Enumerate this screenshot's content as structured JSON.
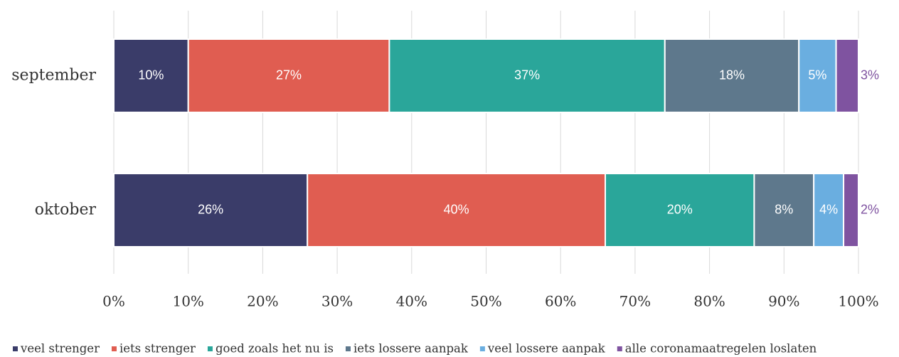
{
  "chart_data": {
    "type": "stacked_bar_horizontal",
    "categories": [
      "september",
      "oktober"
    ],
    "series": [
      {
        "name": "veel strenger",
        "color": "#3a3c69",
        "values": [
          10,
          26
        ],
        "value_labels": [
          "10%",
          "26%"
        ]
      },
      {
        "name": "iets strenger",
        "color": "#e05d51",
        "values": [
          27,
          40
        ],
        "value_labels": [
          "27%",
          "40%"
        ]
      },
      {
        "name": "goed zoals het nu is",
        "color": "#2aa69a",
        "values": [
          37,
          20
        ],
        "value_labels": [
          "37%",
          "20%"
        ]
      },
      {
        "name": "iets lossere aanpak",
        "color": "#5e788c",
        "values": [
          18,
          8
        ],
        "value_labels": [
          "18%",
          "8%"
        ]
      },
      {
        "name": "veel lossere aanpak",
        "color": "#6aaee0",
        "values": [
          5,
          4
        ],
        "value_labels": [
          "5%",
          "4%"
        ]
      },
      {
        "name": "alle coronamaatregelen loslaten",
        "color": "#7f53a0",
        "values": [
          3,
          2
        ],
        "value_labels": [
          "3%",
          "2%"
        ]
      }
    ],
    "xlim": [
      0,
      100
    ],
    "xticks": [
      {
        "value": 0,
        "label": "0%"
      },
      {
        "value": 10,
        "label": "10%"
      },
      {
        "value": 20,
        "label": "20%"
      },
      {
        "value": 30,
        "label": "30%"
      },
      {
        "value": 40,
        "label": "40%"
      },
      {
        "value": 50,
        "label": "50%"
      },
      {
        "value": 60,
        "label": "60%"
      },
      {
        "value": 70,
        "label": "70%"
      },
      {
        "value": 80,
        "label": "80%"
      },
      {
        "value": 90,
        "label": "90%"
      },
      {
        "value": 100,
        "label": "100%"
      }
    ],
    "grid": true,
    "legend": "bottom"
  }
}
